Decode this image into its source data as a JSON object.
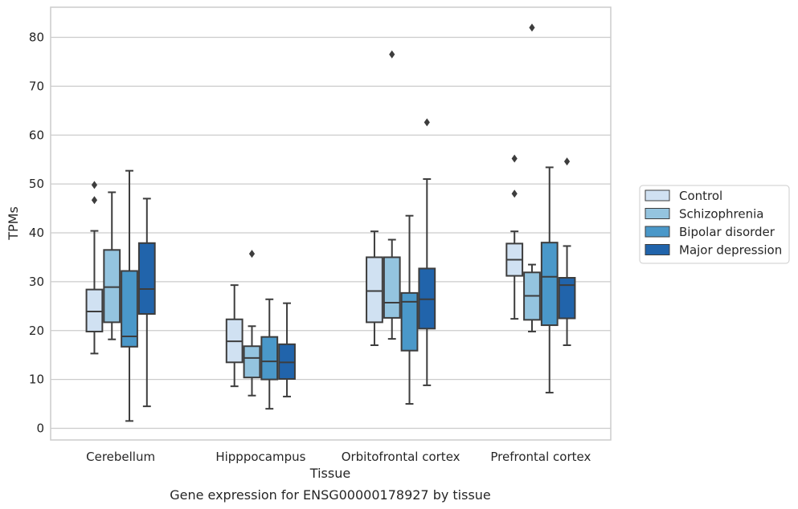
{
  "chart_data": {
    "type": "box",
    "title": "",
    "caption": "Gene expression for ENSG00000178927 by tissue",
    "xlabel": "Tissue",
    "ylabel": "TPMs",
    "ylim": [
      -2.3,
      86
    ],
    "yticks": [
      0,
      10,
      20,
      30,
      40,
      50,
      60,
      70,
      80
    ],
    "grid": "horizontal",
    "legend_placement": "right",
    "categories": [
      "Cerebellum",
      "Hipppocampus",
      "Orbitofrontal cortex",
      "Prefrontal cortex"
    ],
    "series": [
      {
        "name": "Control",
        "color": "#d0e1f2",
        "boxes": [
          {
            "whisker_low": 15.3,
            "q1": 19.8,
            "median": 23.9,
            "q3": 28.4,
            "whisker_high": 40.4,
            "outliers": [
              46.7,
              49.8
            ]
          },
          {
            "whisker_low": 8.6,
            "q1": 13.5,
            "median": 17.8,
            "q3": 22.3,
            "whisker_high": 29.3,
            "outliers": []
          },
          {
            "whisker_low": 17.0,
            "q1": 21.7,
            "median": 28.1,
            "q3": 35.0,
            "whisker_high": 40.3,
            "outliers": []
          },
          {
            "whisker_low": 22.4,
            "q1": 31.2,
            "median": 34.5,
            "q3": 37.8,
            "whisker_high": 40.3,
            "outliers": [
              48.0,
              55.2
            ]
          }
        ]
      },
      {
        "name": "Schizophrenia",
        "color": "#94c4df",
        "boxes": [
          {
            "whisker_low": 18.2,
            "q1": 21.7,
            "median": 28.9,
            "q3": 36.5,
            "whisker_high": 48.3,
            "outliers": []
          },
          {
            "whisker_low": 6.7,
            "q1": 10.4,
            "median": 14.4,
            "q3": 16.8,
            "whisker_high": 20.9,
            "outliers": [
              35.7
            ]
          },
          {
            "whisker_low": 18.3,
            "q1": 22.6,
            "median": 25.7,
            "q3": 35.0,
            "whisker_high": 38.6,
            "outliers": [
              76.5
            ]
          },
          {
            "whisker_low": 19.8,
            "q1": 22.2,
            "median": 27.1,
            "q3": 31.9,
            "whisker_high": 33.5,
            "outliers": [
              82.0
            ]
          }
        ]
      },
      {
        "name": "Bipolar disorder",
        "color": "#4a98c9",
        "boxes": [
          {
            "whisker_low": 1.5,
            "q1": 16.7,
            "median": 18.8,
            "q3": 32.2,
            "whisker_high": 52.7,
            "outliers": []
          },
          {
            "whisker_low": 4.0,
            "q1": 10.0,
            "median": 13.7,
            "q3": 18.7,
            "whisker_high": 26.4,
            "outliers": []
          },
          {
            "whisker_low": 5.0,
            "q1": 15.9,
            "median": 25.9,
            "q3": 27.7,
            "whisker_high": 43.5,
            "outliers": []
          },
          {
            "whisker_low": 7.3,
            "q1": 21.1,
            "median": 31.0,
            "q3": 38.0,
            "whisker_high": 53.4,
            "outliers": []
          }
        ]
      },
      {
        "name": "Major depression",
        "color": "#2164ab",
        "boxes": [
          {
            "whisker_low": 4.5,
            "q1": 23.4,
            "median": 28.5,
            "q3": 37.9,
            "whisker_high": 47.0,
            "outliers": []
          },
          {
            "whisker_low": 6.5,
            "q1": 10.1,
            "median": 13.5,
            "q3": 17.2,
            "whisker_high": 25.6,
            "outliers": []
          },
          {
            "whisker_low": 8.8,
            "q1": 20.4,
            "median": 26.4,
            "q3": 32.7,
            "whisker_high": 51.0,
            "outliers": [
              62.6
            ]
          },
          {
            "whisker_low": 17.0,
            "q1": 22.5,
            "median": 29.3,
            "q3": 30.8,
            "whisker_high": 37.3,
            "outliers": [
              54.6
            ]
          }
        ]
      }
    ]
  }
}
